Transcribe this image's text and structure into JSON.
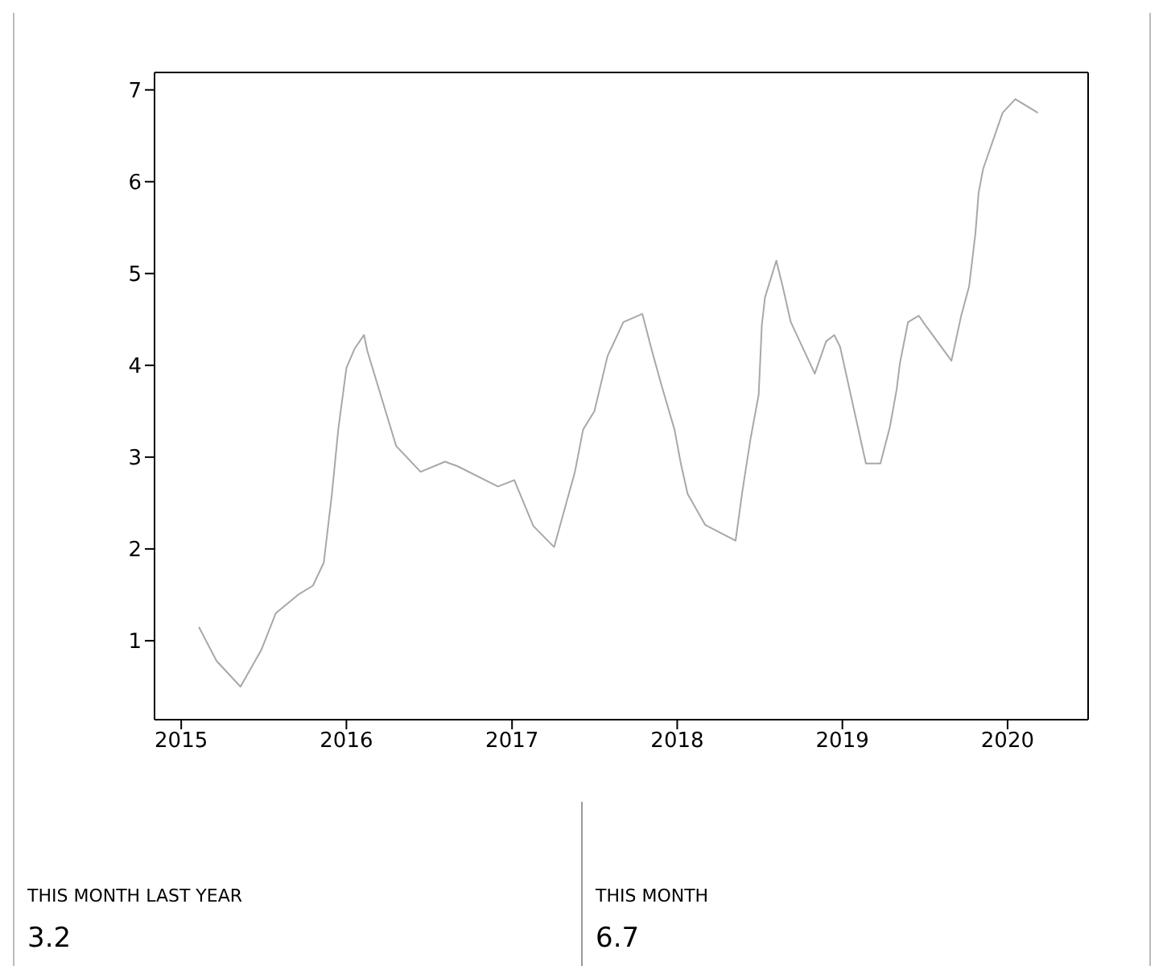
{
  "chart_data": [
    {
      "type": "line",
      "color": "#a8a8a8",
      "line_style": "solid",
      "marker": "none",
      "x": [
        "2015-02-09",
        "2015-03-20",
        "2015-05-12",
        "2015-06-27",
        "2015-07-29",
        "2015-09-16",
        "2015-10-19",
        "2015-11-12",
        "2015-11-30",
        "2015-12-14",
        "2016-01-01",
        "2016-01-19",
        "2016-02-09",
        "2016-02-16",
        "2016-04-20",
        "2016-06-13",
        "2016-08-06",
        "2016-09-03",
        "2016-12-01",
        "2017-01-06",
        "2017-02-17",
        "2017-04-04",
        "2017-05-20",
        "2017-06-07",
        "2017-07-02",
        "2017-07-31",
        "2017-09-04",
        "2017-10-16",
        "2017-11-06",
        "2017-11-28",
        "2017-12-26",
        "2018-01-09",
        "2018-01-24",
        "2018-03-04",
        "2018-05-10",
        "2018-05-25",
        "2018-06-12",
        "2018-06-30",
        "2018-07-07",
        "2018-07-14",
        "2018-08-08",
        "2018-08-22",
        "2018-09-09",
        "2018-11-01",
        "2018-11-26",
        "2018-12-14",
        "2018-12-27",
        "2019-02-22",
        "2019-03-26",
        "2019-04-16",
        "2019-05-01",
        "2019-05-08",
        "2019-05-26",
        "2019-06-19",
        "2019-07-03",
        "2019-08-30",
        "2019-09-20",
        "2019-10-08",
        "2019-10-22",
        "2019-10-29",
        "2019-11-08",
        "2019-12-21",
        "2020-01-18",
        "2020-03-08"
      ],
      "values": [
        1.15,
        0.78,
        0.5,
        0.9,
        1.3,
        1.5,
        1.6,
        1.85,
        2.6,
        3.3,
        3.97,
        4.18,
        4.33,
        4.16,
        3.12,
        2.84,
        2.95,
        2.9,
        2.68,
        2.75,
        2.25,
        2.02,
        2.84,
        3.3,
        3.5,
        4.1,
        4.47,
        4.56,
        4.16,
        3.77,
        3.3,
        2.93,
        2.6,
        2.26,
        2.09,
        2.63,
        3.2,
        3.68,
        4.44,
        4.74,
        5.14,
        4.86,
        4.47,
        3.91,
        4.26,
        4.33,
        4.2,
        2.93,
        2.93,
        3.33,
        3.74,
        4.02,
        4.47,
        4.54,
        4.44,
        4.05,
        4.53,
        4.86,
        5.44,
        5.88,
        6.14,
        6.75,
        6.9,
        6.75
      ],
      "xlim": [
        "2014-11-03",
        "2020-06-27"
      ],
      "xticks": [
        "2015",
        "2016",
        "2017",
        "2018",
        "2019",
        "2020"
      ],
      "ylim": [
        0.14,
        7.19
      ],
      "yticks": [
        1,
        2,
        3,
        4,
        5,
        6,
        7
      ]
    },
    {
      "type": "other",
      "title": "THIS MONTH LAST YEAR",
      "annotations": [
        "3.2"
      ]
    },
    {
      "type": "other",
      "title": "THIS MONTH",
      "annotations": [
        "6.7"
      ]
    }
  ]
}
